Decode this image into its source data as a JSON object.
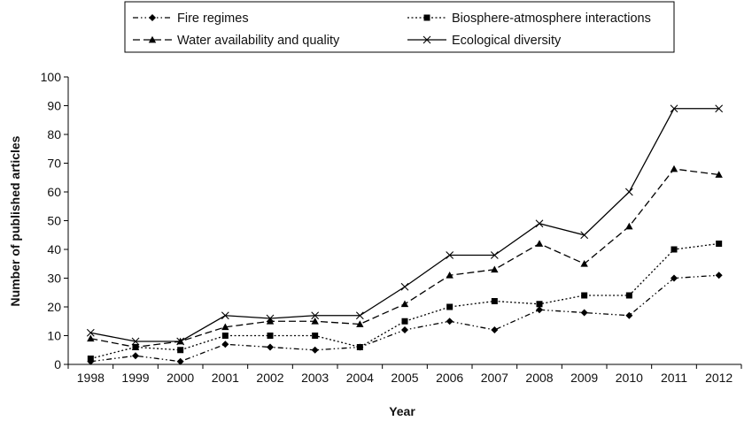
{
  "chart_data": {
    "type": "line",
    "title": "",
    "xlabel": "Year",
    "ylabel": "Number of published articles",
    "ylim": [
      0,
      100
    ],
    "yticks": [
      0,
      10,
      20,
      30,
      40,
      50,
      60,
      70,
      80,
      90,
      100
    ],
    "grid": false,
    "legend_placement": "top",
    "categories": [
      "1998",
      "1999",
      "2000",
      "2001",
      "2002",
      "2003",
      "2004",
      "2005",
      "2006",
      "2007",
      "2008",
      "2009",
      "2010",
      "2011",
      "2012"
    ],
    "series": [
      {
        "name": "Fire regimes",
        "marker": "diamond",
        "dash": "dash-dot-dot",
        "values": [
          1,
          3,
          1,
          7,
          6,
          5,
          6,
          12,
          15,
          12,
          19,
          18,
          17,
          30,
          31
        ]
      },
      {
        "name": "Biosphere-atmosphere interactions",
        "marker": "square",
        "dash": "dotted",
        "values": [
          2,
          6,
          5,
          10,
          10,
          10,
          6,
          15,
          20,
          22,
          21,
          24,
          24,
          40,
          42
        ]
      },
      {
        "name": "Water availability and quality",
        "marker": "triangle",
        "dash": "dashed",
        "values": [
          9,
          6,
          8,
          13,
          15,
          15,
          14,
          21,
          31,
          33,
          42,
          35,
          48,
          68,
          66
        ]
      },
      {
        "name": "Ecological diversity",
        "marker": "x",
        "dash": "solid",
        "values": [
          11,
          8,
          8,
          17,
          16,
          17,
          17,
          27,
          38,
          38,
          49,
          45,
          60,
          89,
          89
        ]
      }
    ]
  }
}
